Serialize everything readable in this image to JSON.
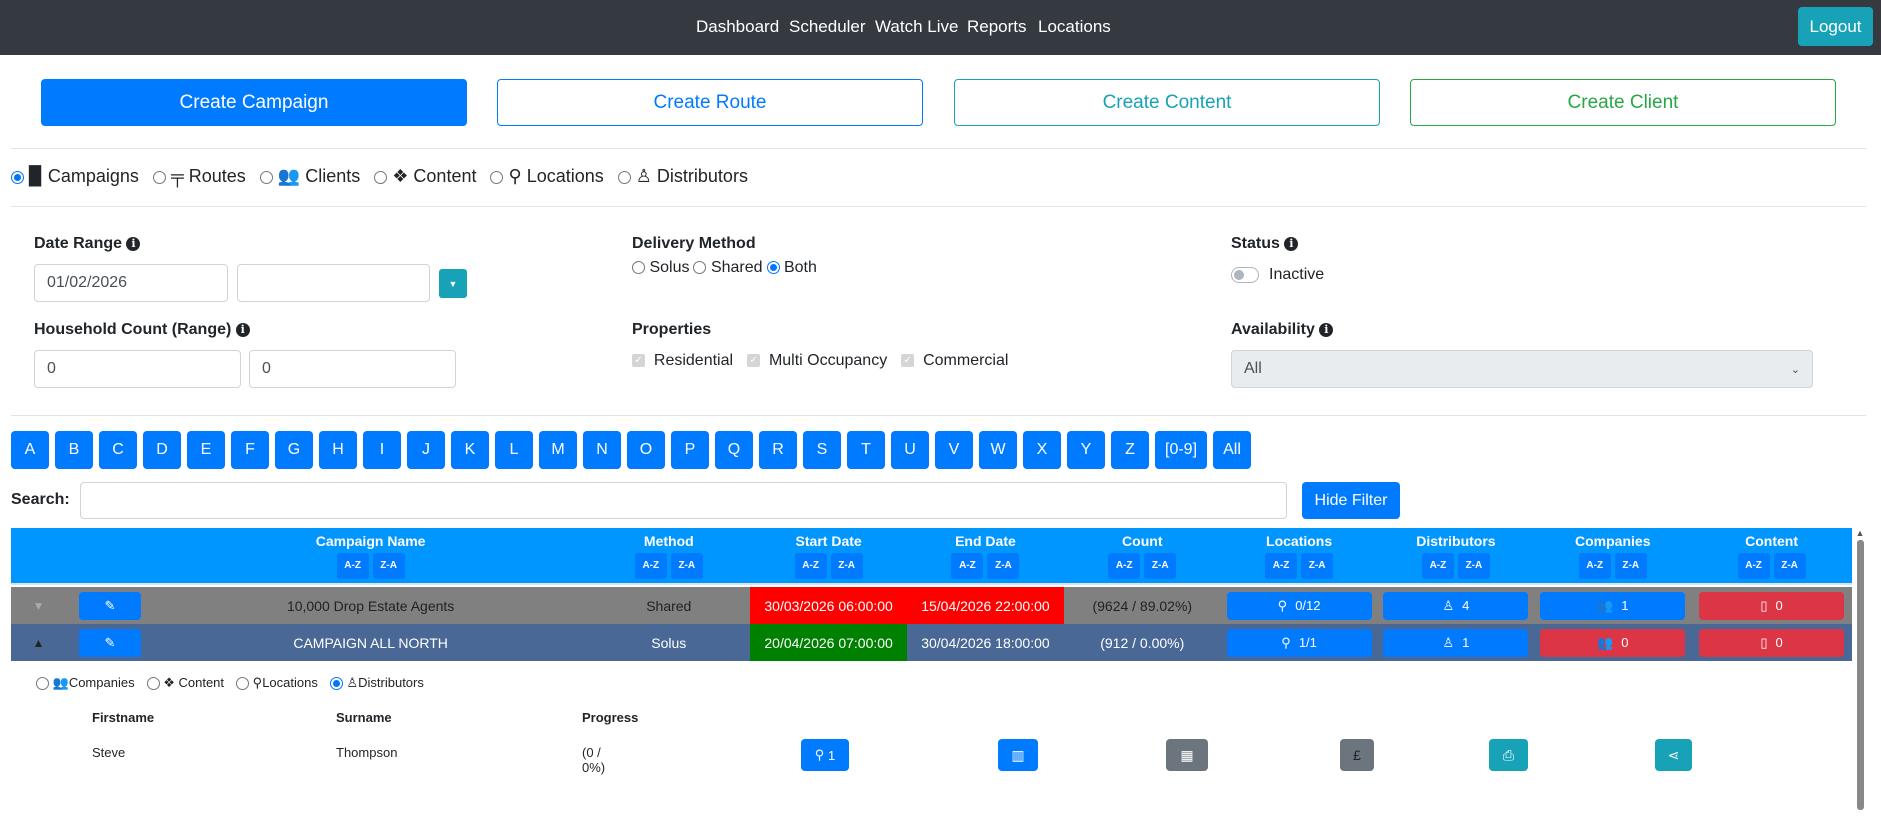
{
  "nav": {
    "links": [
      "Dashboard",
      "Scheduler",
      "Watch Live",
      "Reports",
      "Locations"
    ],
    "logout": "Logout"
  },
  "actions": {
    "create_campaign": "Create Campaign",
    "create_route": "Create Route",
    "create_content": "Create Content",
    "create_client": "Create Client"
  },
  "view_options": [
    {
      "label": "Campaigns",
      "selected": true
    },
    {
      "label": "Routes"
    },
    {
      "label": "Clients"
    },
    {
      "label": "Content"
    },
    {
      "label": "Locations"
    },
    {
      "label": "Distributors"
    }
  ],
  "filters": {
    "date_range": {
      "label": "Date Range",
      "from": "01/02/2026",
      "to": ""
    },
    "household": {
      "label": "Household Count (Range)",
      "min": "0",
      "max": "0"
    },
    "delivery": {
      "label": "Delivery Method",
      "options": [
        "Solus",
        "Shared",
        "Both"
      ],
      "selected": "Both"
    },
    "properties": {
      "label": "Properties",
      "options": [
        "Residential",
        "Multi Occupancy",
        "Commercial"
      ]
    },
    "status": {
      "label": "Status",
      "toggle_label": "Inactive",
      "on": false
    },
    "availability": {
      "label": "Availability",
      "value": "All"
    }
  },
  "letters": [
    "A",
    "B",
    "C",
    "D",
    "E",
    "F",
    "G",
    "H",
    "I",
    "J",
    "K",
    "L",
    "M",
    "N",
    "O",
    "P",
    "Q",
    "R",
    "S",
    "T",
    "U",
    "V",
    "W",
    "X",
    "Y",
    "Z",
    "[0-9]",
    "All"
  ],
  "search": {
    "label": "Search:",
    "value": "",
    "hide_filter": "Hide Filter"
  },
  "table": {
    "columns": [
      "Campaign Name",
      "Method",
      "Start Date",
      "End Date",
      "Count",
      "Locations",
      "Distributors",
      "Companies",
      "Content"
    ],
    "sort_asc": "A-Z",
    "sort_desc": "Z-A",
    "rows": [
      {
        "name": "10,000 Drop Estate Agents",
        "method": "Shared",
        "start": "30/03/2026 06:00:00",
        "end": "15/04/2026 22:00:00",
        "count": "(9624 / 89.02%)",
        "locations": "0/12",
        "distributors": "4",
        "companies": "1",
        "content": "0",
        "expanded": false
      },
      {
        "name": "CAMPAIGN ALL NORTH",
        "method": "Solus",
        "start": "20/04/2026 07:00:00",
        "end": "30/04/2026 18:00:00",
        "count": "(912 / 0.00%)",
        "locations": "1/1",
        "distributors": "1",
        "companies": "0",
        "content": "0",
        "expanded": true
      }
    ]
  },
  "detail": {
    "tabs": [
      {
        "label": "Companies"
      },
      {
        "label": "Content"
      },
      {
        "label": "Locations"
      },
      {
        "label": "Distributors",
        "selected": true
      }
    ],
    "columns": [
      "Firstname",
      "Surname",
      "Progress"
    ],
    "rows": [
      {
        "firstname": "Steve",
        "surname": "Thompson",
        "progress": "(0 / 0%)",
        "locations": "1"
      }
    ]
  },
  "colors": {
    "primary": "#007bff",
    "header": "#0096ff",
    "row_grey": "#808080",
    "row_selected": "#4a6895",
    "overdue": "#ff0000",
    "active": "#008000",
    "danger": "#dc3545"
  }
}
